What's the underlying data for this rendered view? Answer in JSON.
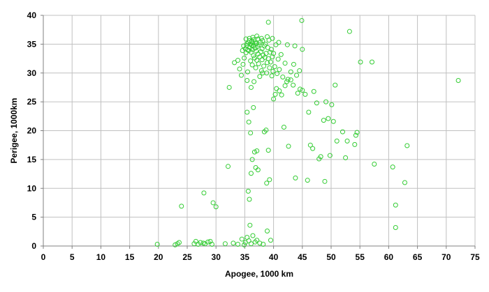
{
  "chart_data": {
    "type": "scatter",
    "title": "",
    "xlabel": "Apogee, 1000 km",
    "ylabel": "Perigee, 1000km",
    "xlim": [
      0,
      75
    ],
    "ylim": [
      0,
      40
    ],
    "x_ticks": [
      0,
      5,
      10,
      15,
      20,
      25,
      30,
      35,
      40,
      45,
      50,
      55,
      60,
      65,
      70,
      75
    ],
    "y_ticks": [
      0,
      5,
      10,
      15,
      20,
      25,
      30,
      35,
      40
    ],
    "x_tick_labels": [
      "0",
      "5",
      "10",
      "15",
      "20",
      "25",
      "30",
      "35",
      "40",
      "45",
      "50",
      "55",
      "60",
      "65",
      "70",
      "75"
    ],
    "y_tick_labels": [
      "0",
      "5",
      "10",
      "15",
      "20",
      "25",
      "30",
      "35",
      "40"
    ],
    "grid": true,
    "legend": "none",
    "colors": {
      "marker": "#33cc33",
      "grid": "#c0c0c0",
      "axis": "#808080"
    },
    "series": [
      {
        "marker": "open-circle",
        "points": [
          [
            19.8,
            0.3
          ],
          [
            22.9,
            0.2
          ],
          [
            23.3,
            0.4
          ],
          [
            23.6,
            0.6
          ],
          [
            24.0,
            6.9
          ],
          [
            26.2,
            0.4
          ],
          [
            26.5,
            0.8
          ],
          [
            26.9,
            0.3
          ],
          [
            27.3,
            0.6
          ],
          [
            27.8,
            0.5
          ],
          [
            28.1,
            0.4
          ],
          [
            28.6,
            0.7
          ],
          [
            29.0,
            0.8
          ],
          [
            29.3,
            0.3
          ],
          [
            27.9,
            9.2
          ],
          [
            29.5,
            7.5
          ],
          [
            30.0,
            6.8
          ],
          [
            31.6,
            0.4
          ],
          [
            32.1,
            13.8
          ],
          [
            33.0,
            0.5
          ],
          [
            33.8,
            0.3
          ],
          [
            34.5,
            1.2
          ],
          [
            34.9,
            0.2
          ],
          [
            35.1,
            0.6
          ],
          [
            35.4,
            1.5
          ],
          [
            35.7,
            0.9
          ],
          [
            36.1,
            0.4
          ],
          [
            36.4,
            1.8
          ],
          [
            36.8,
            0.7
          ],
          [
            37.1,
            1.0
          ],
          [
            37.6,
            0.5
          ],
          [
            38.2,
            0.3
          ],
          [
            38.9,
            2.6
          ],
          [
            39.5,
            1.0
          ],
          [
            35.4,
            23.2
          ],
          [
            35.6,
            9.5
          ],
          [
            35.8,
            8.1
          ],
          [
            35.9,
            3.6
          ],
          [
            35.5,
            30.2
          ],
          [
            35.7,
            21.5
          ],
          [
            36.0,
            19.6
          ],
          [
            36.1,
            12.6
          ],
          [
            36.3,
            15.0
          ],
          [
            36.5,
            24.0
          ],
          [
            36.7,
            16.3
          ],
          [
            36.9,
            13.6
          ],
          [
            37.1,
            16.5
          ],
          [
            37.3,
            13.2
          ],
          [
            38.4,
            19.8
          ],
          [
            38.7,
            20.1
          ],
          [
            39.1,
            16.6
          ],
          [
            38.8,
            10.9
          ],
          [
            39.3,
            11.5
          ],
          [
            40.0,
            25.5
          ],
          [
            40.3,
            26.3
          ],
          [
            40.5,
            27.3
          ],
          [
            41.0,
            26.9
          ],
          [
            41.4,
            26.2
          ],
          [
            41.8,
            20.6
          ],
          [
            42.0,
            27.8
          ],
          [
            42.3,
            28.5
          ],
          [
            42.6,
            17.3
          ],
          [
            43.0,
            28.8
          ],
          [
            43.4,
            27.9
          ],
          [
            43.8,
            11.8
          ],
          [
            44.2,
            26.5
          ],
          [
            44.6,
            27.2
          ],
          [
            45.0,
            27.0
          ],
          [
            45.5,
            26.3
          ],
          [
            45.9,
            11.4
          ],
          [
            46.1,
            23.2
          ],
          [
            46.4,
            17.5
          ],
          [
            46.8,
            16.9
          ],
          [
            47.0,
            26.8
          ],
          [
            47.5,
            24.8
          ],
          [
            47.9,
            15.1
          ],
          [
            48.2,
            15.5
          ],
          [
            48.7,
            21.8
          ],
          [
            48.9,
            11.2
          ],
          [
            49.1,
            25.0
          ],
          [
            49.5,
            22.1
          ],
          [
            49.8,
            15.7
          ],
          [
            50.1,
            24.5
          ],
          [
            50.4,
            21.6
          ],
          [
            50.7,
            27.9
          ],
          [
            51.0,
            18.2
          ],
          [
            52.0,
            19.8
          ],
          [
            52.5,
            15.3
          ],
          [
            52.8,
            18.2
          ],
          [
            53.2,
            37.2
          ],
          [
            54.1,
            17.6
          ],
          [
            54.3,
            19.2
          ],
          [
            54.5,
            19.7
          ],
          [
            55.1,
            31.9
          ],
          [
            57.1,
            31.9
          ],
          [
            57.5,
            14.2
          ],
          [
            60.7,
            13.7
          ],
          [
            61.2,
            7.1
          ],
          [
            61.2,
            3.2
          ],
          [
            62.8,
            11.0
          ],
          [
            63.2,
            17.4
          ],
          [
            72.1,
            28.7
          ],
          [
            33.2,
            31.8
          ],
          [
            33.8,
            32.2
          ],
          [
            34.1,
            30.7
          ],
          [
            34.4,
            29.6
          ],
          [
            34.7,
            31.5
          ],
          [
            34.9,
            32.6
          ],
          [
            35.1,
            34.2
          ],
          [
            35.2,
            33.5
          ],
          [
            35.3,
            34.8
          ],
          [
            35.4,
            35.1
          ],
          [
            35.5,
            34.0
          ],
          [
            35.6,
            35.3
          ],
          [
            35.7,
            33.9
          ],
          [
            35.8,
            35.6
          ],
          [
            35.9,
            34.4
          ],
          [
            36.0,
            35.0
          ],
          [
            36.0,
            32.1
          ],
          [
            36.1,
            33.6
          ],
          [
            36.2,
            34.8
          ],
          [
            36.2,
            35.5
          ],
          [
            36.3,
            31.4
          ],
          [
            36.3,
            34.1
          ],
          [
            36.4,
            35.2
          ],
          [
            36.5,
            33.0
          ],
          [
            36.5,
            34.7
          ],
          [
            36.6,
            35.8
          ],
          [
            36.7,
            32.6
          ],
          [
            36.8,
            34.3
          ],
          [
            36.8,
            35.4
          ],
          [
            36.9,
            30.9
          ],
          [
            37.0,
            33.8
          ],
          [
            37.0,
            35.1
          ],
          [
            37.1,
            32.2
          ],
          [
            37.2,
            34.6
          ],
          [
            37.3,
            35.9
          ],
          [
            37.3,
            33.3
          ],
          [
            37.4,
            31.6
          ],
          [
            37.5,
            34.9
          ],
          [
            37.6,
            32.8
          ],
          [
            37.7,
            35.3
          ],
          [
            37.8,
            33.7
          ],
          [
            37.9,
            30.4
          ],
          [
            38.0,
            34.2
          ],
          [
            38.0,
            32.3
          ],
          [
            38.1,
            35.6
          ],
          [
            38.2,
            33.1
          ],
          [
            38.3,
            31.2
          ],
          [
            38.4,
            34.7
          ],
          [
            38.5,
            32.7
          ],
          [
            38.6,
            35.0
          ],
          [
            38.7,
            33.4
          ],
          [
            38.8,
            30.0
          ],
          [
            38.9,
            31.8
          ],
          [
            39.0,
            34.4
          ],
          [
            39.1,
            32.5
          ],
          [
            39.2,
            35.7
          ],
          [
            39.3,
            30.9
          ],
          [
            39.4,
            33.6
          ],
          [
            39.5,
            31.9
          ],
          [
            39.6,
            34.1
          ],
          [
            39.7,
            29.5
          ],
          [
            39.8,
            32.8
          ],
          [
            39.9,
            30.3
          ],
          [
            40.0,
            33.4
          ],
          [
            40.2,
            31.1
          ],
          [
            40.4,
            34.9
          ],
          [
            40.6,
            29.9
          ],
          [
            40.8,
            32.4
          ],
          [
            41.0,
            30.6
          ],
          [
            41.3,
            33.2
          ],
          [
            41.6,
            29.3
          ],
          [
            42.0,
            31.7
          ],
          [
            42.5,
            28.9
          ],
          [
            43.0,
            30.2
          ],
          [
            43.5,
            31.5
          ],
          [
            44.0,
            29.6
          ],
          [
            44.5,
            30.4
          ],
          [
            45.0,
            34.1
          ],
          [
            43.7,
            34.7
          ],
          [
            42.4,
            34.9
          ],
          [
            40.9,
            35.3
          ],
          [
            39.8,
            36.0
          ],
          [
            38.9,
            36.3
          ],
          [
            37.9,
            36.0
          ],
          [
            37.1,
            36.4
          ],
          [
            36.4,
            36.2
          ],
          [
            35.8,
            36.0
          ],
          [
            35.2,
            35.9
          ],
          [
            34.8,
            34.7
          ],
          [
            34.6,
            33.9
          ],
          [
            39.1,
            38.8
          ],
          [
            44.9,
            39.1
          ],
          [
            35.4,
            28.7
          ],
          [
            36.6,
            28.5
          ],
          [
            37.6,
            29.4
          ],
          [
            38.1,
            30.0
          ],
          [
            36.1,
            27.5
          ],
          [
            32.3,
            27.5
          ]
        ]
      }
    ]
  }
}
